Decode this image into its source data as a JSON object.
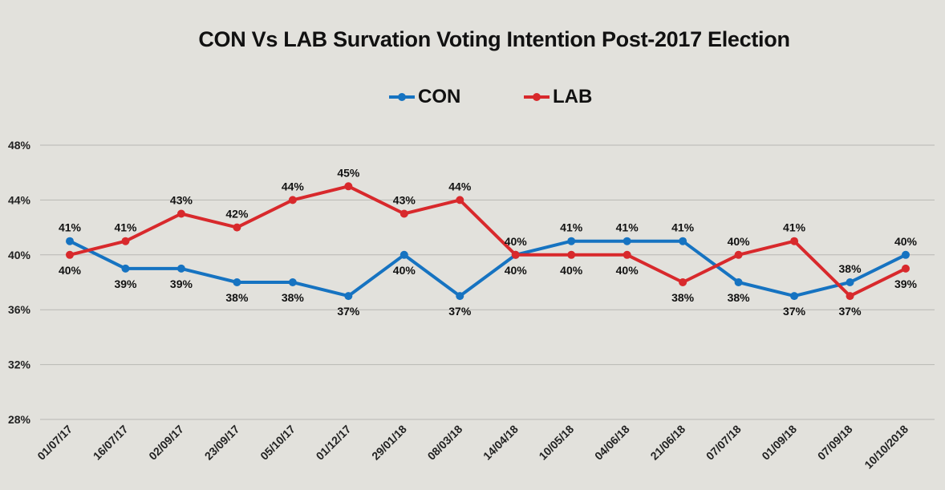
{
  "chart_data": {
    "type": "line",
    "title": "CON Vs LAB Survation Voting Intention Post-2017 Election",
    "xlabel": "",
    "ylabel": "",
    "categories": [
      "01/07/17",
      "16/07/17",
      "02/09/17",
      "23/09/17",
      "05/10/17",
      "01/12/17",
      "29/01/18",
      "08/03/18",
      "14/04/18",
      "10/05/18",
      "04/06/18",
      "21/06/18",
      "07/07/18",
      "01/09/18",
      "07/09/18",
      "10/10/2018"
    ],
    "ylim": [
      28,
      48
    ],
    "yticks": [
      28,
      32,
      36,
      40,
      44,
      48
    ],
    "ytick_labels": [
      "28%",
      "32%",
      "36%",
      "40%",
      "44%",
      "48%"
    ],
    "grid": true,
    "legend_position": "top",
    "series": [
      {
        "name": "CON",
        "color": "#1673c1",
        "values": [
          41,
          39,
          39,
          38,
          38,
          37,
          40,
          37,
          40,
          41,
          41,
          41,
          38,
          37,
          38,
          40
        ],
        "labels": [
          "41%",
          "39%",
          "39%",
          "38%",
          "38%",
          "37%",
          "40%",
          "37%",
          "40%",
          "41%",
          "41%",
          "41%",
          "38%",
          "37%",
          "38%",
          "40%"
        ]
      },
      {
        "name": "LAB",
        "color": "#d8292c",
        "values": [
          40,
          41,
          43,
          42,
          44,
          45,
          43,
          44,
          40,
          40,
          40,
          38,
          40,
          41,
          37,
          39
        ],
        "labels": [
          "40%",
          "41%",
          "43%",
          "42%",
          "44%",
          "45%",
          "43%",
          "44%",
          "40%",
          "40%",
          "40%",
          "38%",
          "40%",
          "41%",
          "37%",
          "39%"
        ]
      }
    ]
  }
}
